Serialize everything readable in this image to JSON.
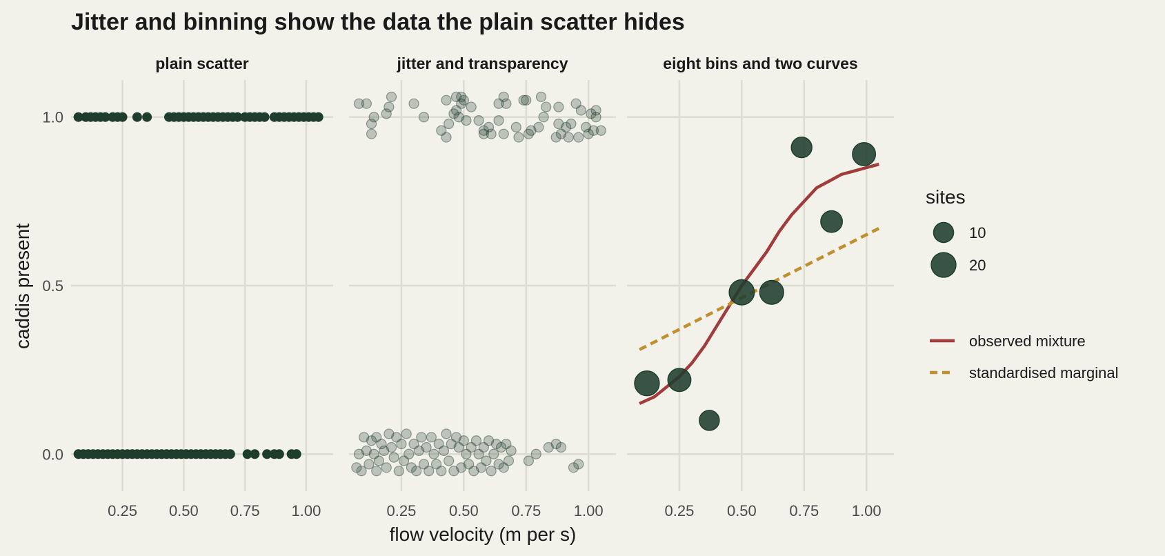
{
  "title": "Jitter and binning show the data the plain scatter hides",
  "colors": {
    "background": "#f2f1ea",
    "grid": "#dcdcd2",
    "point": "#1f3d2d",
    "observed": "#a03c3c",
    "marginal": "#bf9030",
    "text": "#1a1a1a",
    "tick_text": "#4a4a4a"
  },
  "chart_data": {
    "type": "scatter",
    "xlabel": "flow velocity (m per s)",
    "ylabel": "caddis present",
    "y_ticks": [
      "0.0",
      "0.5",
      "1.0"
    ],
    "y_tick_values": [
      0,
      0.5,
      1
    ],
    "x_ticks": [
      "0.25",
      "0.50",
      "0.75",
      "1.00"
    ],
    "x_tick_values": [
      0.25,
      0.5,
      0.75,
      1.0
    ],
    "legend_position": "right",
    "panels": [
      {
        "title": "plain scatter",
        "xlim": [
          0.04,
          1.11
        ],
        "ylim": [
          -0.11,
          1.11
        ],
        "present_x": [
          0.07,
          0.1,
          0.12,
          0.14,
          0.16,
          0.18,
          0.21,
          0.23,
          0.25,
          0.31,
          0.35,
          0.44,
          0.46,
          0.48,
          0.5,
          0.52,
          0.54,
          0.56,
          0.58,
          0.6,
          0.62,
          0.64,
          0.66,
          0.68,
          0.7,
          0.72,
          0.75,
          0.77,
          0.79,
          0.81,
          0.83,
          0.87,
          0.89,
          0.91,
          0.93,
          0.95,
          0.97,
          0.99,
          1.01,
          1.03,
          1.05
        ],
        "absent_x": [
          0.07,
          0.09,
          0.11,
          0.13,
          0.15,
          0.17,
          0.19,
          0.21,
          0.23,
          0.25,
          0.27,
          0.29,
          0.31,
          0.33,
          0.35,
          0.37,
          0.39,
          0.41,
          0.43,
          0.45,
          0.47,
          0.49,
          0.51,
          0.53,
          0.55,
          0.57,
          0.59,
          0.61,
          0.63,
          0.65,
          0.67,
          0.69,
          0.76,
          0.79,
          0.84,
          0.87,
          0.89,
          0.94,
          0.96
        ]
      },
      {
        "title": "jitter and transparency",
        "xlim": [
          0.04,
          1.11
        ],
        "ylim": [
          -0.11,
          1.11
        ],
        "points": [
          [
            0.08,
            1.04
          ],
          [
            0.11,
            1.04
          ],
          [
            0.13,
            0.95
          ],
          [
            0.13,
            0.98
          ],
          [
            0.14,
            1.0
          ],
          [
            0.19,
            1.01
          ],
          [
            0.2,
            1.03
          ],
          [
            0.21,
            1.06
          ],
          [
            0.3,
            1.04
          ],
          [
            0.34,
            1.0
          ],
          [
            0.41,
            0.96
          ],
          [
            0.43,
            0.94
          ],
          [
            0.43,
            1.05
          ],
          [
            0.44,
            0.98
          ],
          [
            0.46,
            1.01
          ],
          [
            0.47,
            1.02
          ],
          [
            0.47,
            1.06
          ],
          [
            0.48,
            1.0
          ],
          [
            0.49,
            1.06
          ],
          [
            0.49,
            1.04
          ],
          [
            0.5,
            1.05
          ],
          [
            0.51,
            0.99
          ],
          [
            0.53,
            1.03
          ],
          [
            0.56,
            0.99
          ],
          [
            0.58,
            0.95
          ],
          [
            0.58,
            0.96
          ],
          [
            0.6,
            0.97
          ],
          [
            0.61,
            0.95
          ],
          [
            0.64,
            1.04
          ],
          [
            0.64,
            0.99
          ],
          [
            0.66,
            1.06
          ],
          [
            0.66,
            0.95
          ],
          [
            0.67,
            1.04
          ],
          [
            0.71,
            0.97
          ],
          [
            0.72,
            0.94
          ],
          [
            0.74,
            1.05
          ],
          [
            0.75,
            1.05
          ],
          [
            0.76,
            0.95
          ],
          [
            0.77,
            0.96
          ],
          [
            0.8,
            0.97
          ],
          [
            0.81,
            1.06
          ],
          [
            0.82,
            1.0
          ],
          [
            0.83,
            1.03
          ],
          [
            0.87,
            0.94
          ],
          [
            0.88,
            1.03
          ],
          [
            0.88,
            0.98
          ],
          [
            0.89,
            0.95
          ],
          [
            0.91,
            0.97
          ],
          [
            0.92,
            0.94
          ],
          [
            0.93,
            0.98
          ],
          [
            0.95,
            1.04
          ],
          [
            0.96,
            0.94
          ],
          [
            0.97,
            1.02
          ],
          [
            0.99,
            0.97
          ],
          [
            1.0,
            0.95
          ],
          [
            1.01,
            1.01
          ],
          [
            1.02,
            0.96
          ],
          [
            1.03,
            1.0
          ],
          [
            1.03,
            1.02
          ],
          [
            1.05,
            0.96
          ],
          [
            0.07,
            -0.04
          ],
          [
            0.08,
            0.0
          ],
          [
            0.09,
            -0.05
          ],
          [
            0.1,
            0.05
          ],
          [
            0.11,
            0.01
          ],
          [
            0.12,
            -0.03
          ],
          [
            0.13,
            0.04
          ],
          [
            0.14,
            0.0
          ],
          [
            0.15,
            0.05
          ],
          [
            0.15,
            -0.05
          ],
          [
            0.16,
            -0.02
          ],
          [
            0.17,
            0.03
          ],
          [
            0.18,
            0.01
          ],
          [
            0.19,
            -0.04
          ],
          [
            0.2,
            0.06
          ],
          [
            0.21,
            0.02
          ],
          [
            0.22,
            -0.01
          ],
          [
            0.23,
            0.05
          ],
          [
            0.24,
            -0.05
          ],
          [
            0.25,
            0.03
          ],
          [
            0.26,
            -0.02
          ],
          [
            0.27,
            0.06
          ],
          [
            0.28,
            0.0
          ],
          [
            0.29,
            -0.04
          ],
          [
            0.3,
            0.03
          ],
          [
            0.31,
            -0.05
          ],
          [
            0.32,
            0.01
          ],
          [
            0.33,
            0.05
          ],
          [
            0.34,
            -0.03
          ],
          [
            0.35,
            0.02
          ],
          [
            0.36,
            -0.05
          ],
          [
            0.37,
            0.05
          ],
          [
            0.38,
            0.0
          ],
          [
            0.39,
            -0.03
          ],
          [
            0.4,
            0.03
          ],
          [
            0.41,
            -0.05
          ],
          [
            0.42,
            0.01
          ],
          [
            0.43,
            0.06
          ],
          [
            0.44,
            -0.02
          ],
          [
            0.45,
            0.03
          ],
          [
            0.46,
            -0.05
          ],
          [
            0.47,
            0.05
          ],
          [
            0.48,
            0.02
          ],
          [
            0.49,
            -0.04
          ],
          [
            0.5,
            0.04
          ],
          [
            0.51,
            0.0
          ],
          [
            0.52,
            -0.03
          ],
          [
            0.53,
            0.02
          ],
          [
            0.54,
            -0.05
          ],
          [
            0.55,
            0.04
          ],
          [
            0.56,
            0.0
          ],
          [
            0.57,
            -0.04
          ],
          [
            0.58,
            0.02
          ],
          [
            0.59,
            -0.02
          ],
          [
            0.6,
            0.04
          ],
          [
            0.61,
            -0.05
          ],
          [
            0.62,
            0.0
          ],
          [
            0.63,
            0.03
          ],
          [
            0.64,
            -0.03
          ],
          [
            0.65,
            0.02
          ],
          [
            0.66,
            -0.04
          ],
          [
            0.67,
            0.03
          ],
          [
            0.68,
            -0.02
          ],
          [
            0.69,
            0.01
          ],
          [
            0.76,
            -0.02
          ],
          [
            0.79,
            0.0
          ],
          [
            0.84,
            0.02
          ],
          [
            0.87,
            0.03
          ],
          [
            0.89,
            0.02
          ],
          [
            0.94,
            -0.04
          ],
          [
            0.96,
            -0.03
          ]
        ]
      },
      {
        "title": "eight bins and two curves",
        "xlim": [
          0.04,
          1.11
        ],
        "ylim": [
          -0.11,
          1.11
        ],
        "bins": [
          {
            "x": 0.12,
            "y": 0.21,
            "sites": 20
          },
          {
            "x": 0.25,
            "y": 0.22,
            "sites": 16
          },
          {
            "x": 0.37,
            "y": 0.1,
            "sites": 10
          },
          {
            "x": 0.5,
            "y": 0.48,
            "sites": 21
          },
          {
            "x": 0.62,
            "y": 0.48,
            "sites": 18
          },
          {
            "x": 0.74,
            "y": 0.91,
            "sites": 11
          },
          {
            "x": 0.86,
            "y": 0.69,
            "sites": 13
          },
          {
            "x": 0.99,
            "y": 0.89,
            "sites": 16
          }
        ],
        "series": [
          {
            "name": "observed mixture",
            "style": "solid",
            "x": [
              0.09,
              0.15,
              0.2,
              0.25,
              0.3,
              0.35,
              0.4,
              0.45,
              0.5,
              0.55,
              0.6,
              0.65,
              0.7,
              0.75,
              0.8,
              0.85,
              0.9,
              0.95,
              1.0,
              1.05
            ],
            "y": [
              0.15,
              0.17,
              0.2,
              0.23,
              0.27,
              0.32,
              0.38,
              0.44,
              0.5,
              0.55,
              0.6,
              0.66,
              0.71,
              0.75,
              0.79,
              0.81,
              0.83,
              0.84,
              0.85,
              0.86
            ]
          },
          {
            "name": "standardised marginal",
            "style": "dashed",
            "x": [
              0.09,
              1.05
            ],
            "y": [
              0.31,
              0.67
            ]
          }
        ]
      }
    ],
    "legend": {
      "size_title": "sites",
      "size_entries": [
        {
          "label": "10",
          "sites": 10
        },
        {
          "label": "20",
          "sites": 20
        }
      ],
      "line_entries": [
        {
          "label": "observed mixture",
          "style": "solid"
        },
        {
          "label": "standardised marginal",
          "style": "dashed"
        }
      ]
    }
  }
}
